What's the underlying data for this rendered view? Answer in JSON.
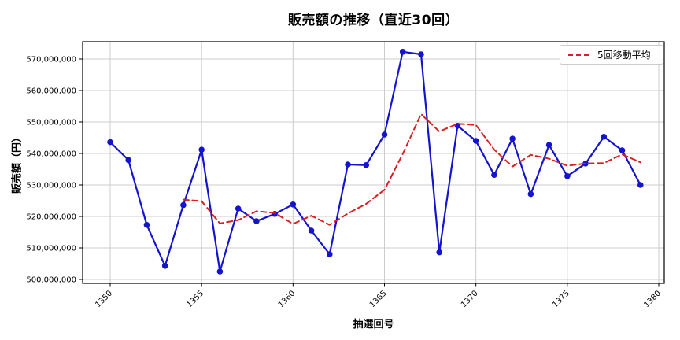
{
  "chart_data": {
    "type": "line",
    "title": "販売額の推移（直近30回）",
    "xlabel": "抽選回号",
    "ylabel": "販売額（円）",
    "grid": true,
    "xlim": [
      1348.5,
      1380.3
    ],
    "ylim": [
      497500000,
      575500000
    ],
    "xticks": [
      1350,
      1355,
      1360,
      1365,
      1370,
      1375,
      1380
    ],
    "xtick_labels": [
      "1350",
      "1355",
      "1360",
      "1365",
      "1370",
      "1375",
      "1380"
    ],
    "yticks": [
      500000000,
      510000000,
      520000000,
      530000000,
      540000000,
      550000000,
      560000000,
      570000000
    ],
    "ytick_labels": [
      "500,000,000",
      "510,000,000",
      "520,000,000",
      "530,000,000",
      "540,000,000",
      "550,000,000",
      "560,000,000",
      "570,000,000"
    ],
    "x": [
      1350,
      1351,
      1352,
      1353,
      1354,
      1355,
      1356,
      1357,
      1358,
      1359,
      1360,
      1361,
      1362,
      1363,
      1364,
      1365,
      1366,
      1367,
      1368,
      1369,
      1370,
      1371,
      1372,
      1373,
      1374,
      1375,
      1376,
      1377,
      1378,
      1379
    ],
    "series": [
      {
        "name": "販売額",
        "color": "#1414cf",
        "style": "solid",
        "marker": "circle",
        "x_start": 1350,
        "values": [
          543600000,
          537900000,
          517300000,
          504300000,
          523600000,
          541200000,
          502500000,
          522500000,
          518500000,
          520800000,
          523800000,
          515500000,
          508000000,
          536500000,
          536300000,
          546000000,
          572300000,
          571500000,
          508600000,
          548800000,
          544000000,
          533200000,
          544700000,
          527100000,
          542700000,
          532800000,
          536800000,
          545300000,
          541000000,
          530000000
        ]
      },
      {
        "name": "5回移動平均",
        "color": "#d62222",
        "style": "dashed",
        "marker": "none",
        "x_start": 1354,
        "values": [
          525340000,
          524860000,
          517780000,
          518820000,
          521660000,
          521100000,
          517620000,
          520220000,
          517320000,
          520920000,
          524020000,
          528460000,
          539820000,
          552520000,
          546940000,
          549440000,
          549040000,
          541220000,
          535860000,
          539560000,
          538340000,
          536100000,
          536820000,
          536940000,
          539720000,
          537180000
        ]
      }
    ],
    "legend": {
      "position": "upper right",
      "entries": [
        "5回移動平均"
      ]
    },
    "colors": {
      "grid": "#cccccc",
      "frame": "#000000",
      "background": "#ffffff"
    }
  }
}
